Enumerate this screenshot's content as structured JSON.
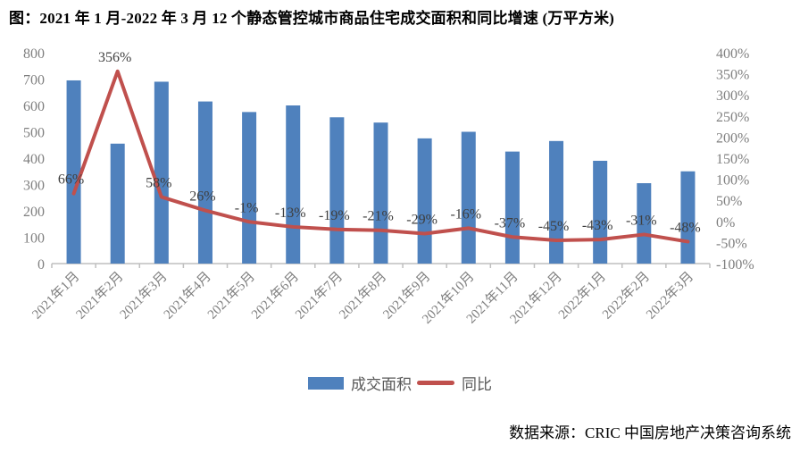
{
  "title": "图：2021 年 1 月-2022 年 3 月 12 个静态管控城市商品住宅成交面积和同比增速 (万平方米)",
  "source": "数据来源：CRIC 中国房地产决策咨询系统",
  "colors": {
    "bar": "#4F81BD",
    "line": "#C0504D",
    "axis_text": "#7F7F7F",
    "data_label": "#3F3F3F",
    "axis_line": "#BFBFBF"
  },
  "chart_data": {
    "type": "combo-bar-line",
    "categories": [
      "2021年1月",
      "2021年2月",
      "2021年3月",
      "2021年4月",
      "2021年5月",
      "2021年6月",
      "2021年7月",
      "2021年8月",
      "2021年9月",
      "2021年10月",
      "2021年11月",
      "2021年12月",
      "2022年1月",
      "2022年2月",
      "2022年3月"
    ],
    "series": [
      {
        "name": "成交面积",
        "type": "bar",
        "axis": "left",
        "values": [
          695,
          455,
          690,
          615,
          575,
          600,
          555,
          535,
          475,
          500,
          425,
          465,
          390,
          305,
          350
        ]
      },
      {
        "name": "同比",
        "type": "line",
        "axis": "right",
        "values": [
          66,
          356,
          58,
          26,
          -1,
          -13,
          -19,
          -21,
          -29,
          -16,
          -37,
          -45,
          -43,
          -31,
          -48
        ],
        "point_labels": [
          "66%",
          "356%",
          "58%",
          "26%",
          "-1%",
          "-13%",
          "-19%",
          "-21%",
          "-29%",
          "-16%",
          "-37%",
          "-45%",
          "-43%",
          "-31%",
          "-48%"
        ]
      }
    ],
    "left_axis": {
      "min": 0,
      "max": 800,
      "ticks": [
        "0",
        "100",
        "200",
        "300",
        "400",
        "500",
        "600",
        "700",
        "800"
      ]
    },
    "right_axis": {
      "min": -100,
      "max": 400,
      "ticks": [
        "-100%",
        "-50%",
        "0%",
        "50%",
        "100%",
        "150%",
        "200%",
        "250%",
        "300%",
        "350%",
        "400%"
      ]
    },
    "legend_position": "bottom",
    "grid": false,
    "x_label_rotation": -45
  }
}
